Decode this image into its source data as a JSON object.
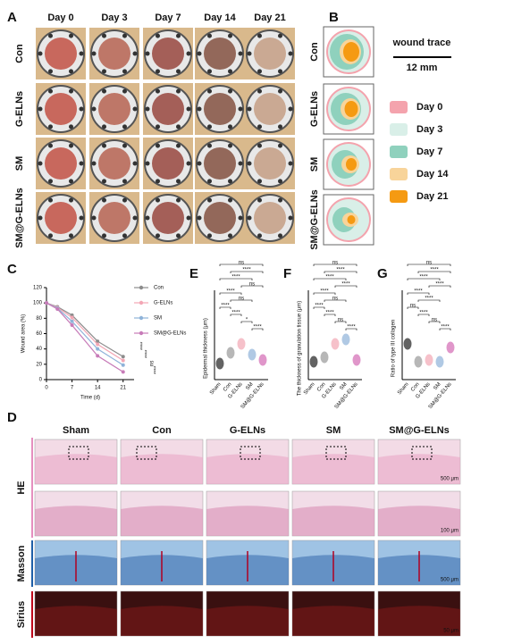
{
  "panel_a": {
    "letter": "A",
    "days": [
      "Day 0",
      "Day 3",
      "Day 7",
      "Day 14",
      "Day 21"
    ],
    "groups": [
      "Con",
      "G-ELNs",
      "SM",
      "SM@G-ELNs"
    ]
  },
  "panel_b": {
    "letter": "B",
    "groups": [
      "Con",
      "G-ELNs",
      "SM",
      "SM@G-ELNs"
    ],
    "legend_title": "wound trace",
    "scale": "12 mm",
    "legend": [
      {
        "label": "Day 0",
        "color": "#f4a3ad"
      },
      {
        "label": "Day 3",
        "color": "#d9efe8"
      },
      {
        "label": "Day 7",
        "color": "#8fd1bd"
      },
      {
        "label": "Day 14",
        "color": "#f8d49a"
      },
      {
        "label": "Day 21",
        "color": "#f59a12"
      }
    ]
  },
  "chart_data": {
    "type": "line",
    "panel_letter": "C",
    "x_label": "Time (d)",
    "y_label": "Wound area (%)",
    "x": [
      0,
      3,
      7,
      14,
      21
    ],
    "xlim": [
      0,
      24
    ],
    "xticks": [
      0,
      7,
      14,
      21
    ],
    "ylim": [
      0,
      120
    ],
    "yticks": [
      0,
      20,
      40,
      60,
      80,
      100,
      120
    ],
    "series": [
      {
        "name": "Con",
        "color": "#8c8c8c",
        "values": [
          100,
          95,
          84,
          50,
          30
        ]
      },
      {
        "name": "G-ELNs",
        "color": "#f3a7b5",
        "values": [
          100,
          94,
          81,
          46,
          25
        ]
      },
      {
        "name": "SM",
        "color": "#8fb3d9",
        "values": [
          100,
          93,
          76,
          40,
          19
        ]
      },
      {
        "name": "SM@G-ELNs",
        "color": "#c77bb8",
        "values": [
          100,
          92,
          71,
          31,
          10
        ]
      }
    ],
    "annotations": [
      "****",
      "****",
      "ns",
      "****"
    ]
  },
  "panel_e": {
    "letter": "E",
    "y_label": "Epidermal thickness (μm)",
    "categories": [
      "Sham",
      "Con",
      "G-ELNs",
      "SM",
      "SM@G-ELNs"
    ],
    "significance": [
      "ns",
      "****",
      "****",
      "ns",
      "****",
      "ns",
      "****",
      "****",
      "*",
      "****"
    ]
  },
  "panel_f": {
    "letter": "F",
    "y_label": "The thickness of granulation tissue (μm)",
    "categories": [
      "Sham",
      "Con",
      "G-ELNs",
      "SM",
      "SM@G-ELNs"
    ],
    "significance": [
      "ns",
      "****",
      "****",
      "****",
      "****",
      "ns",
      "****",
      "****",
      "ns",
      "****"
    ]
  },
  "panel_g": {
    "letter": "G",
    "y_label": "Ratio of type III collagen",
    "categories": [
      "Sham",
      "Con",
      "G-ELNs",
      "SM",
      "SM@G-ELNs"
    ],
    "significance": [
      "ns",
      "****",
      "****",
      "****",
      "****",
      "****",
      "ns",
      "****",
      "ns",
      "****"
    ]
  },
  "panel_d": {
    "letter": "D",
    "groups": [
      "Sham",
      "Con",
      "G-ELNs",
      "SM",
      "SM@G-ELNs"
    ],
    "stains": [
      "HE",
      "Masson",
      "Sirius"
    ],
    "scale_bars": [
      "500 μm",
      "100 μm",
      "500 μm",
      "50 μm"
    ]
  }
}
